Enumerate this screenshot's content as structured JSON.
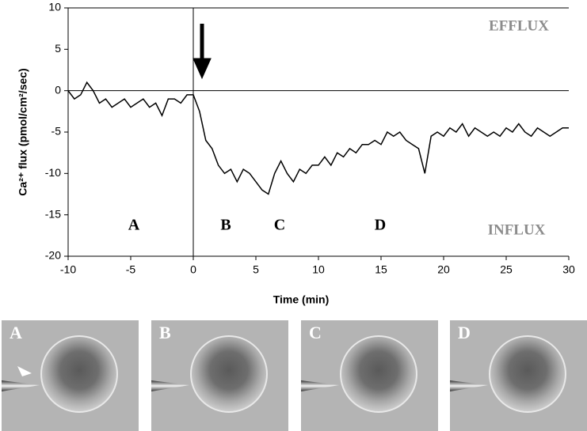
{
  "chart_data": {
    "type": "line",
    "xlabel": "Time (min)",
    "ylabel": "Ca²⁺ flux (pmol/cm²/sec)",
    "color": "#000000",
    "x": [
      -10,
      -9.5,
      -9,
      -8.5,
      -8,
      -7.5,
      -7,
      -6.5,
      -6,
      -5.5,
      -5,
      -4.5,
      -4,
      -3.5,
      -3,
      -2.5,
      -2,
      -1.5,
      -1,
      -0.5,
      0,
      0.5,
      1,
      1.5,
      2,
      2.5,
      3,
      3.5,
      4,
      4.5,
      5,
      5.5,
      6,
      6.5,
      7,
      7.5,
      8,
      8.5,
      9,
      9.5,
      10,
      10.5,
      11,
      11.5,
      12,
      12.5,
      13,
      13.5,
      14,
      14.5,
      15,
      15.5,
      16,
      16.5,
      17,
      17.5,
      18,
      18.5,
      19,
      19.5,
      20,
      20.5,
      21,
      21.5,
      22,
      22.5,
      23,
      23.5,
      24,
      24.5,
      25,
      25.5,
      26,
      26.5,
      27,
      27.5,
      28,
      28.5,
      29,
      29.5,
      30
    ],
    "values": [
      0,
      -1,
      -0.5,
      1,
      0,
      -1.5,
      -1,
      -2,
      -1.5,
      -1,
      -2,
      -1.5,
      -1,
      -2,
      -1.5,
      -3,
      -1,
      -1,
      -1.5,
      -0.5,
      -0.5,
      -2.5,
      -6,
      -7,
      -9,
      -10,
      -9.5,
      -11,
      -9.5,
      -10,
      -11,
      -12,
      -12.5,
      -10,
      -8.5,
      -10,
      -11,
      -9.5,
      -10,
      -9,
      -9,
      -8,
      -9,
      -7.5,
      -8,
      -7,
      -7.5,
      -6.5,
      -6.5,
      -6,
      -6.5,
      -5,
      -5.5,
      -5,
      -6,
      -6.5,
      -7,
      -10,
      -5.5,
      -5,
      -5.5,
      -4.5,
      -5,
      -4,
      -5.5,
      -4.5,
      -5,
      -5.5,
      -5,
      -5.5,
      -4.5,
      -5,
      -4,
      -5,
      -5.5,
      -4.5,
      -5,
      -5.5,
      -5,
      -4.5,
      -4.5
    ],
    "xlim": [
      -10,
      30
    ],
    "xticks": [
      -10,
      -5,
      0,
      5,
      10,
      15,
      20,
      25,
      30
    ],
    "ylim": [
      -20,
      10
    ],
    "yticks": [
      -20,
      -15,
      -10,
      -5,
      0,
      5,
      10
    ],
    "annotations": [
      "EFFLUX",
      "INFLUX",
      "A",
      "B",
      "C",
      "D"
    ]
  },
  "panels": [
    "A",
    "B",
    "C",
    "D"
  ]
}
